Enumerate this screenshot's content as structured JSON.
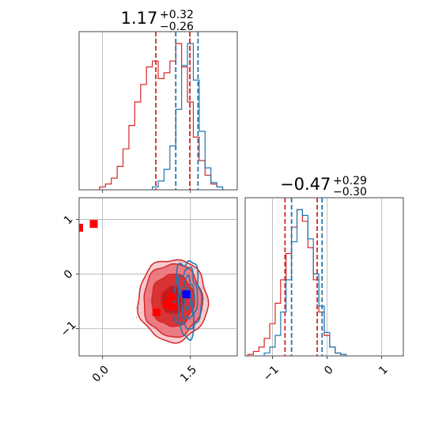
{
  "chart_data": {
    "type": "corner",
    "grid": true,
    "colors": {
      "red": "#d62728",
      "blue": "#1f77b4",
      "marker_red": "#ff0000",
      "marker_blue": "#0000ff"
    },
    "parameters": [
      {
        "title": {
          "value": "1.17",
          "upper": "+0.32",
          "lower": "−0.26"
        },
        "range": [
          -0.4,
          2.3
        ],
        "ticks": [
          0.0,
          1.5
        ],
        "tick_labels": [
          "0.0",
          "1.5"
        ],
        "red_quantile_lines": [
          0.91,
          1.49
        ],
        "blue_quantile_lines": [
          1.25,
          1.63
        ],
        "red_histogram": {
          "bins_x": [
            0.0,
            0.1,
            0.2,
            0.3,
            0.4,
            0.5,
            0.6,
            0.7,
            0.8,
            0.9,
            1.0,
            1.1,
            1.2,
            1.3,
            1.4,
            1.5,
            1.6,
            1.7,
            1.8,
            1.9,
            2.0
          ],
          "counts": [
            1,
            2,
            4,
            8,
            14,
            22,
            30,
            36,
            42,
            44,
            38,
            40,
            44,
            50,
            42,
            30,
            18,
            10,
            5,
            2,
            1
          ]
        },
        "blue_histogram": {
          "bins_x": [
            0.9,
            1.0,
            1.1,
            1.2,
            1.3,
            1.4,
            1.5,
            1.6,
            1.7,
            1.8,
            1.9,
            2.0
          ],
          "counts": [
            2,
            6,
            14,
            30,
            55,
            85,
            100,
            75,
            40,
            15,
            5,
            2
          ]
        }
      },
      {
        "title": {
          "value": "−0.47",
          "upper": "+0.29",
          "lower": "−0.30"
        },
        "range": [
          -1.5,
          1.4
        ],
        "ticks": [
          -1,
          0,
          1
        ],
        "tick_labels": [
          "−1",
          "0",
          "1"
        ],
        "red_quantile_lines": [
          -0.77,
          -0.18
        ],
        "blue_quantile_lines": [
          -0.65,
          -0.09
        ],
        "red_histogram": {
          "bins_x": [
            -1.4,
            -1.3,
            -1.2,
            -1.1,
            -1.0,
            -0.9,
            -0.8,
            -0.7,
            -0.6,
            -0.5,
            -0.4,
            -0.3,
            -0.2,
            -0.1,
            0.0,
            0.1,
            0.2,
            0.3
          ],
          "counts": [
            1,
            3,
            6,
            12,
            22,
            36,
            52,
            70,
            88,
            100,
            92,
            74,
            52,
            30,
            14,
            6,
            2,
            1
          ]
        },
        "blue_histogram": {
          "bins_x": [
            -1.1,
            -1.0,
            -0.9,
            -0.8,
            -0.7,
            -0.6,
            -0.5,
            -0.4,
            -0.3,
            -0.2,
            -0.1,
            0.0,
            0.1,
            0.2,
            0.3
          ],
          "counts": [
            2,
            6,
            14,
            30,
            52,
            78,
            100,
            96,
            80,
            56,
            34,
            16,
            6,
            2,
            1
          ]
        }
      }
    ],
    "joint": {
      "x_ticks": [
        0.0,
        1.5
      ],
      "x_tick_labels": [
        "0.0",
        "1.5"
      ],
      "y_ticks": [
        1,
        0,
        -1
      ],
      "y_tick_labels": [
        "1",
        "0",
        "−1"
      ],
      "y_range": [
        -1.5,
        1.4
      ],
      "red_center": [
        1.2,
        -0.48
      ],
      "blue_center": [
        1.45,
        -0.45
      ],
      "red_markers": [
        {
          "x": -0.4,
          "y": 0.85
        },
        {
          "x": -0.15,
          "y": 0.92
        },
        {
          "x": 0.92,
          "y": -0.7
        },
        {
          "x": 1.1,
          "y": -0.55
        },
        {
          "x": 1.18,
          "y": -0.42
        },
        {
          "x": 1.2,
          "y": -0.6
        }
      ],
      "blue_markers": [
        {
          "x": 1.43,
          "y": -0.37
        }
      ]
    }
  }
}
